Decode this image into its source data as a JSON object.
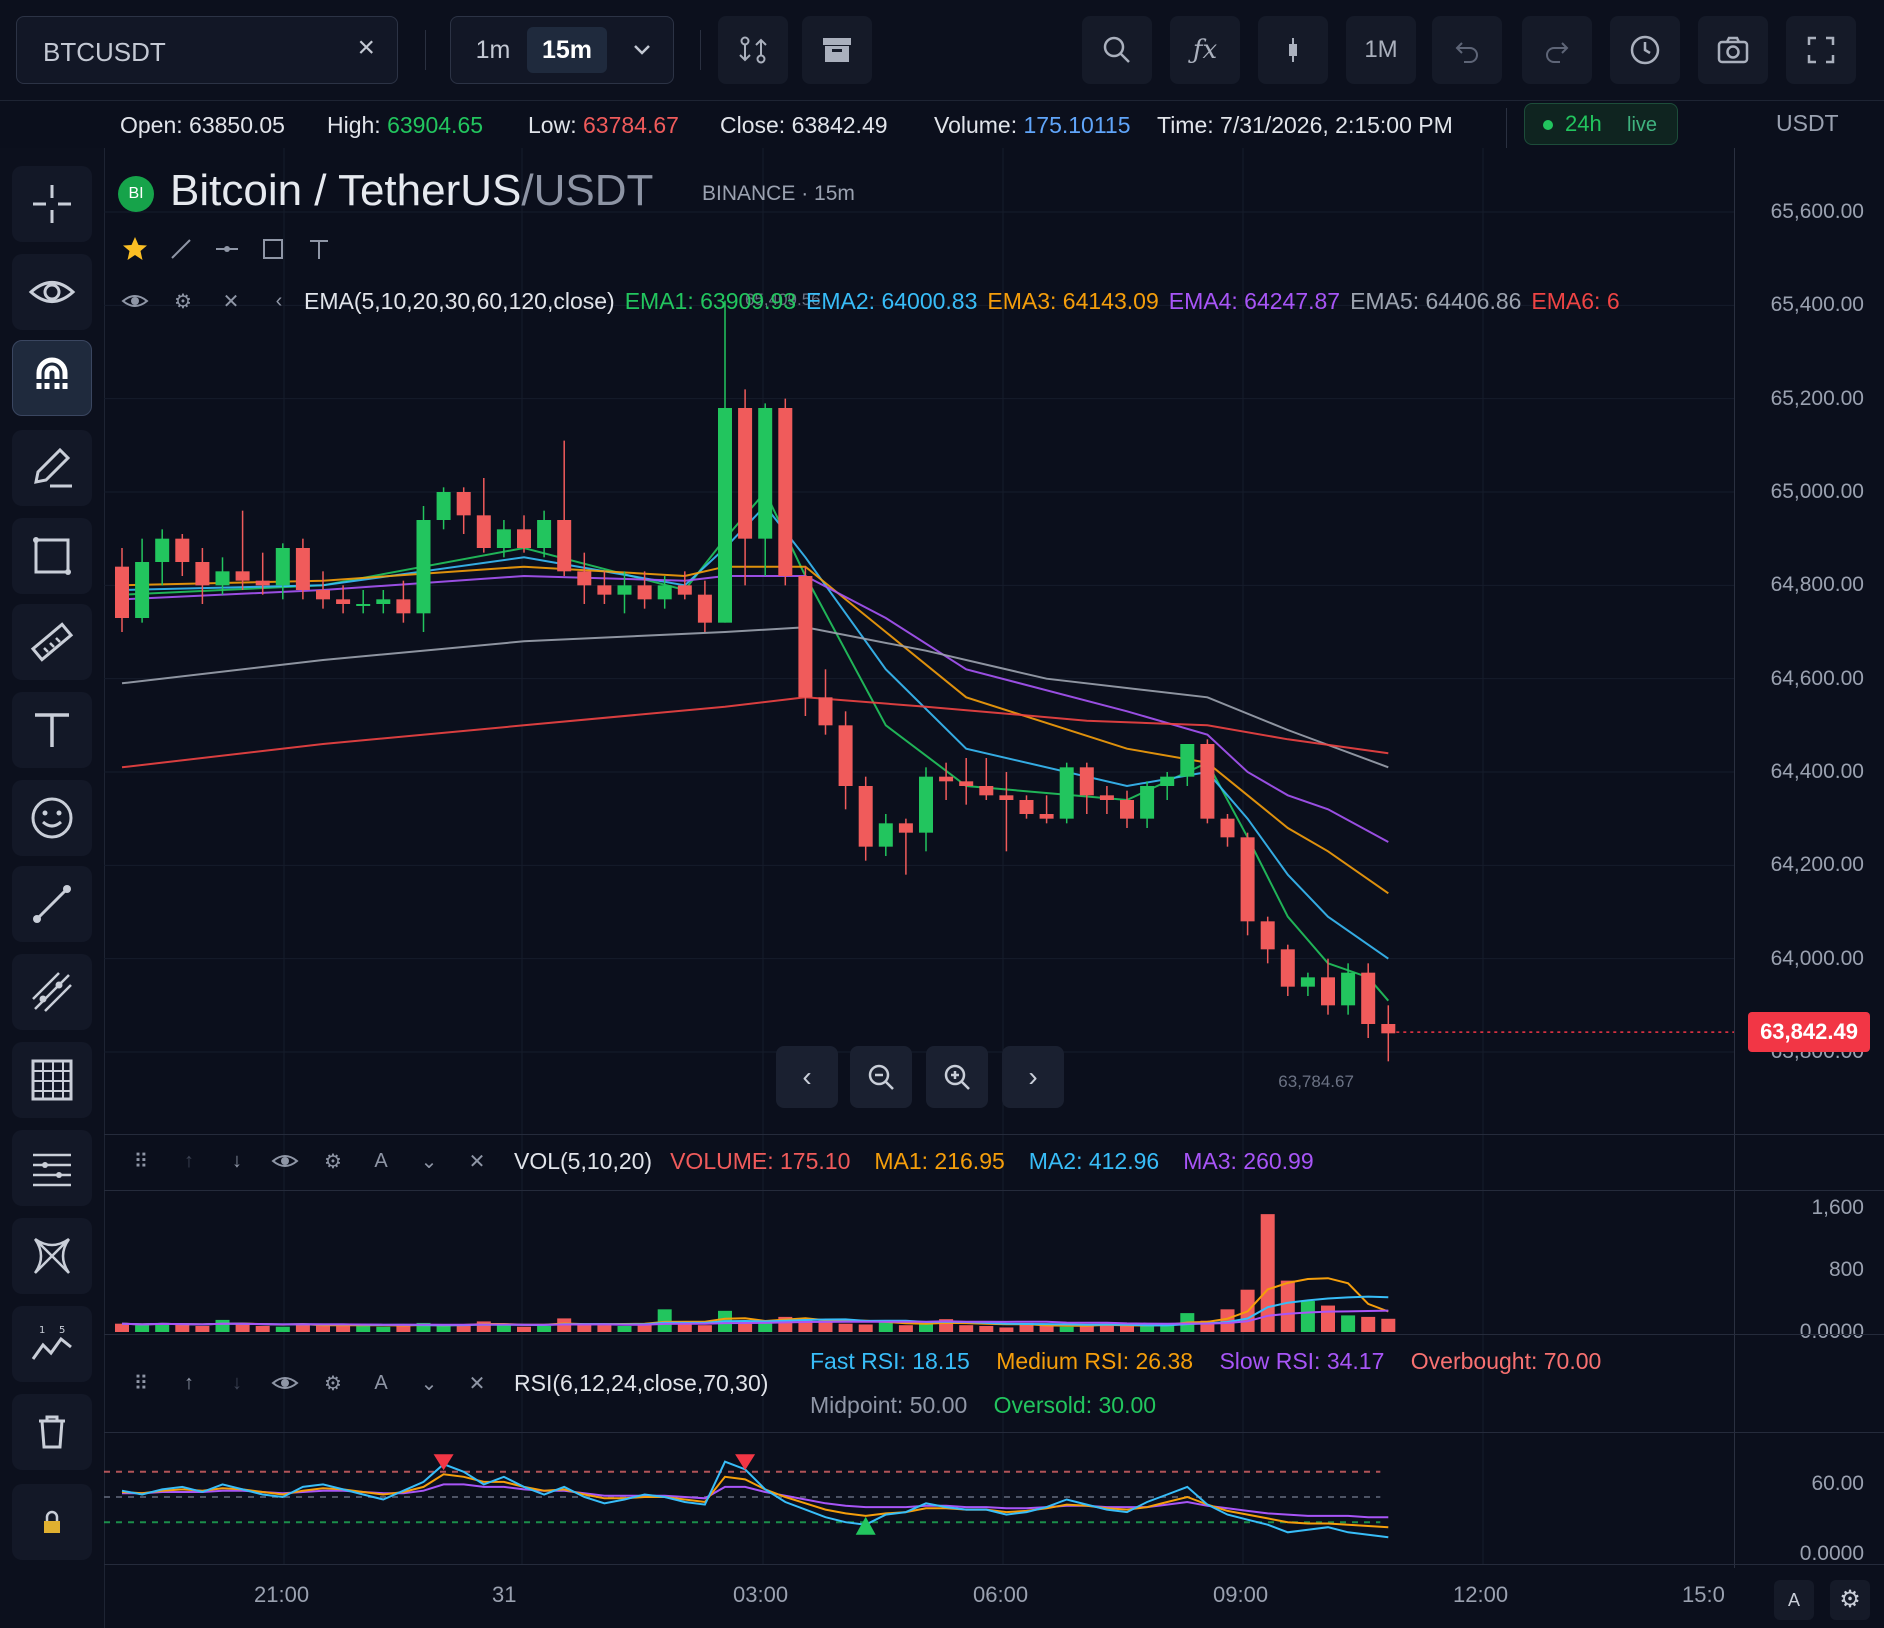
{
  "toolbar": {
    "symbol": "BTCUSDT",
    "intervals": [
      "1m",
      "15m"
    ],
    "active_interval": "15m",
    "range_label": "1M",
    "icons": [
      "compare-icon",
      "archive-icon",
      "search-icon",
      "function-icon",
      "candle-type-icon",
      "undo-icon",
      "redo-icon",
      "clock-icon",
      "camera-icon",
      "fullscreen-icon"
    ]
  },
  "info": {
    "open_label": "Open:",
    "open": "63850.05",
    "high_label": "High:",
    "high": "63904.65",
    "low_label": "Low:",
    "low": "63784.67",
    "close_label": "Close:",
    "close": "63842.49",
    "volume_label": "Volume:",
    "volume": "175.10115",
    "time_label": "Time:",
    "time": "7/31/2026, 2:15:00 PM",
    "live_period": "24h",
    "live_text": "live",
    "currency": "USDT"
  },
  "header": {
    "badge": "BI",
    "pair": "Bitcoin / TetherUS",
    "quote": "/USDT",
    "exchange": "BINANCE",
    "sep": "·",
    "interval": "15m"
  },
  "ema": {
    "label": "EMA(5,10,20,30,60,120,close)",
    "items": [
      {
        "text": "EMA1: 63909.93",
        "color": "#22c55e"
      },
      {
        "text": "EMA2: 64000.83",
        "color": "#38bdf8"
      },
      {
        "text": "EMA3: 64143.09",
        "color": "#f59e0b"
      },
      {
        "text": "EMA4: 64247.87",
        "color": "#a855f7"
      },
      {
        "text": "EMA5: 64406.86",
        "color": "#9ca3af"
      },
      {
        "text": "EMA6: 6",
        "color": "#ef4444"
      }
    ],
    "high_marker": "65,409.56",
    "low_marker": "63,784.67"
  },
  "vol": {
    "label": "VOL(5,10,20)",
    "volume": "VOLUME: 175.10",
    "ma1": "MA1: 216.95",
    "ma2": "MA2: 412.96",
    "ma3": "MA3: 260.99",
    "yticks": [
      "1,600",
      "800",
      "0.0000"
    ]
  },
  "rsi": {
    "label": "RSI(6,12,24,close,70,30)",
    "fast": "Fast RSI: 18.15",
    "medium": "Medium RSI: 26.38",
    "slow": "Slow RSI: 34.17",
    "overbought": "Overbought: 70.00",
    "midpoint": "Midpoint: 50.00",
    "oversold": "Oversold: 30.00",
    "yticks": [
      "60.00",
      "0.0000"
    ]
  },
  "price_axis": {
    "ticks": [
      "65,600.00",
      "65,400.00",
      "65,200.00",
      "65,000.00",
      "64,800.00",
      "64,600.00",
      "64,400.00",
      "64,200.00",
      "64,000.00",
      "63,800.00"
    ],
    "current": "63,842.49"
  },
  "time_axis": {
    "ticks": [
      "21:00",
      "31",
      "03:00",
      "06:00",
      "09:00",
      "12:00",
      "15:0"
    ]
  },
  "bottom_right": {
    "auto_label": "A"
  },
  "colors": {
    "up": "#22c55e",
    "down": "#f05b5b",
    "accent": "#f23645",
    "background": "#0b0f1c"
  },
  "chart_data": {
    "type": "candlestick",
    "interval": "15m",
    "candles": [
      {
        "o": 64840,
        "h": 64880,
        "l": 64700,
        "c": 64730
      },
      {
        "o": 64730,
        "h": 64900,
        "l": 64720,
        "c": 64850
      },
      {
        "o": 64850,
        "h": 64920,
        "l": 64800,
        "c": 64900
      },
      {
        "o": 64900,
        "h": 64910,
        "l": 64820,
        "c": 64850
      },
      {
        "o": 64850,
        "h": 64880,
        "l": 64760,
        "c": 64800
      },
      {
        "o": 64800,
        "h": 64860,
        "l": 64780,
        "c": 64830
      },
      {
        "o": 64830,
        "h": 64960,
        "l": 64790,
        "c": 64810
      },
      {
        "o": 64810,
        "h": 64870,
        "l": 64780,
        "c": 64800
      },
      {
        "o": 64800,
        "h": 64890,
        "l": 64770,
        "c": 64880
      },
      {
        "o": 64880,
        "h": 64900,
        "l": 64770,
        "c": 64790
      },
      {
        "o": 64790,
        "h": 64830,
        "l": 64750,
        "c": 64770
      },
      {
        "o": 64770,
        "h": 64800,
        "l": 64740,
        "c": 64760
      },
      {
        "o": 64760,
        "h": 64790,
        "l": 64740,
        "c": 64760
      },
      {
        "o": 64760,
        "h": 64790,
        "l": 64740,
        "c": 64770
      },
      {
        "o": 64770,
        "h": 64810,
        "l": 64720,
        "c": 64740
      },
      {
        "o": 64740,
        "h": 64970,
        "l": 64700,
        "c": 64940
      },
      {
        "o": 64940,
        "h": 65010,
        "l": 64920,
        "c": 65000
      },
      {
        "o": 65000,
        "h": 65010,
        "l": 64910,
        "c": 64950
      },
      {
        "o": 64950,
        "h": 65030,
        "l": 64870,
        "c": 64880
      },
      {
        "o": 64880,
        "h": 64940,
        "l": 64860,
        "c": 64920
      },
      {
        "o": 64920,
        "h": 64950,
        "l": 64870,
        "c": 64880
      },
      {
        "o": 64880,
        "h": 64960,
        "l": 64860,
        "c": 64940
      },
      {
        "o": 64940,
        "h": 65110,
        "l": 64820,
        "c": 64830
      },
      {
        "o": 64830,
        "h": 64870,
        "l": 64760,
        "c": 64800
      },
      {
        "o": 64800,
        "h": 64830,
        "l": 64760,
        "c": 64780
      },
      {
        "o": 64780,
        "h": 64830,
        "l": 64740,
        "c": 64800
      },
      {
        "o": 64800,
        "h": 64830,
        "l": 64750,
        "c": 64770
      },
      {
        "o": 64770,
        "h": 64820,
        "l": 64750,
        "c": 64800
      },
      {
        "o": 64800,
        "h": 64830,
        "l": 64770,
        "c": 64780
      },
      {
        "o": 64780,
        "h": 64810,
        "l": 64700,
        "c": 64720
      },
      {
        "o": 64720,
        "h": 65410,
        "l": 64720,
        "c": 65180
      },
      {
        "o": 65180,
        "h": 65220,
        "l": 64800,
        "c": 64900
      },
      {
        "o": 64900,
        "h": 65190,
        "l": 64820,
        "c": 65180
      },
      {
        "o": 65180,
        "h": 65200,
        "l": 64800,
        "c": 64820
      },
      {
        "o": 64820,
        "h": 64840,
        "l": 64520,
        "c": 64560
      },
      {
        "o": 64560,
        "h": 64620,
        "l": 64480,
        "c": 64500
      },
      {
        "o": 64500,
        "h": 64530,
        "l": 64320,
        "c": 64370
      },
      {
        "o": 64370,
        "h": 64390,
        "l": 64210,
        "c": 64240
      },
      {
        "o": 64240,
        "h": 64310,
        "l": 64220,
        "c": 64290
      },
      {
        "o": 64290,
        "h": 64300,
        "l": 64180,
        "c": 64270
      },
      {
        "o": 64270,
        "h": 64410,
        "l": 64230,
        "c": 64390
      },
      {
        "o": 64390,
        "h": 64420,
        "l": 64340,
        "c": 64380
      },
      {
        "o": 64380,
        "h": 64430,
        "l": 64330,
        "c": 64370
      },
      {
        "o": 64370,
        "h": 64430,
        "l": 64340,
        "c": 64350
      },
      {
        "o": 64350,
        "h": 64400,
        "l": 64230,
        "c": 64340
      },
      {
        "o": 64340,
        "h": 64350,
        "l": 64300,
        "c": 64310
      },
      {
        "o": 64310,
        "h": 64350,
        "l": 64290,
        "c": 64300
      },
      {
        "o": 64300,
        "h": 64420,
        "l": 64290,
        "c": 64410
      },
      {
        "o": 64410,
        "h": 64420,
        "l": 64310,
        "c": 64350
      },
      {
        "o": 64350,
        "h": 64370,
        "l": 64310,
        "c": 64340
      },
      {
        "o": 64340,
        "h": 64360,
        "l": 64280,
        "c": 64300
      },
      {
        "o": 64300,
        "h": 64380,
        "l": 64280,
        "c": 64370
      },
      {
        "o": 64370,
        "h": 64400,
        "l": 64340,
        "c": 64390
      },
      {
        "o": 64390,
        "h": 64460,
        "l": 64370,
        "c": 64460
      },
      {
        "o": 64460,
        "h": 64470,
        "l": 64290,
        "c": 64300
      },
      {
        "o": 64300,
        "h": 64310,
        "l": 64240,
        "c": 64260
      },
      {
        "o": 64260,
        "h": 64270,
        "l": 64050,
        "c": 64080
      },
      {
        "o": 64080,
        "h": 64090,
        "l": 63990,
        "c": 64020
      },
      {
        "o": 64020,
        "h": 64030,
        "l": 63920,
        "c": 63940
      },
      {
        "o": 63940,
        "h": 63970,
        "l": 63920,
        "c": 63960
      },
      {
        "o": 63960,
        "h": 64000,
        "l": 63880,
        "c": 63900
      },
      {
        "o": 63900,
        "h": 63990,
        "l": 63880,
        "c": 63970
      },
      {
        "o": 63970,
        "h": 63990,
        "l": 63830,
        "c": 63860
      },
      {
        "o": 63860,
        "h": 63900,
        "l": 63780,
        "c": 63840
      }
    ],
    "ema_series": [
      {
        "name": "EMA1",
        "color": "#22c55e",
        "values": [
          [
            0,
            64780
          ],
          [
            10,
            64800
          ],
          [
            20,
            64880
          ],
          [
            28,
            64790
          ],
          [
            30,
            64900
          ],
          [
            32,
            65000
          ],
          [
            34,
            64820
          ],
          [
            38,
            64500
          ],
          [
            42,
            64370
          ],
          [
            50,
            64340
          ],
          [
            54,
            64420
          ],
          [
            56,
            64260
          ],
          [
            58,
            64090
          ],
          [
            60,
            63990
          ],
          [
            62,
            63960
          ],
          [
            63,
            63910
          ]
        ]
      },
      {
        "name": "EMA2",
        "color": "#38bdf8",
        "values": [
          [
            0,
            64790
          ],
          [
            10,
            64800
          ],
          [
            20,
            64860
          ],
          [
            28,
            64800
          ],
          [
            30,
            64880
          ],
          [
            32,
            64970
          ],
          [
            34,
            64860
          ],
          [
            38,
            64620
          ],
          [
            42,
            64450
          ],
          [
            50,
            64370
          ],
          [
            54,
            64400
          ],
          [
            56,
            64300
          ],
          [
            58,
            64180
          ],
          [
            60,
            64090
          ],
          [
            63,
            64000
          ]
        ]
      },
      {
        "name": "EMA3",
        "color": "#f59e0b",
        "values": [
          [
            0,
            64800
          ],
          [
            10,
            64810
          ],
          [
            20,
            64840
          ],
          [
            28,
            64820
          ],
          [
            30,
            64840
          ],
          [
            34,
            64840
          ],
          [
            38,
            64700
          ],
          [
            42,
            64560
          ],
          [
            50,
            64450
          ],
          [
            54,
            64420
          ],
          [
            56,
            64350
          ],
          [
            58,
            64280
          ],
          [
            60,
            64230
          ],
          [
            63,
            64140
          ]
        ]
      },
      {
        "name": "EMA4",
        "color": "#a855f7",
        "values": [
          [
            0,
            64770
          ],
          [
            10,
            64790
          ],
          [
            20,
            64820
          ],
          [
            28,
            64810
          ],
          [
            30,
            64820
          ],
          [
            34,
            64820
          ],
          [
            38,
            64730
          ],
          [
            42,
            64620
          ],
          [
            50,
            64530
          ],
          [
            54,
            64480
          ],
          [
            56,
            64400
          ],
          [
            58,
            64350
          ],
          [
            60,
            64320
          ],
          [
            63,
            64250
          ]
        ]
      },
      {
        "name": "EMA5",
        "color": "#9ca3af",
        "values": [
          [
            0,
            64590
          ],
          [
            10,
            64640
          ],
          [
            20,
            64680
          ],
          [
            30,
            64700
          ],
          [
            34,
            64710
          ],
          [
            40,
            64660
          ],
          [
            46,
            64600
          ],
          [
            54,
            64560
          ],
          [
            58,
            64490
          ],
          [
            63,
            64410
          ]
        ]
      },
      {
        "name": "EMA6",
        "color": "#ef4444",
        "values": [
          [
            0,
            64410
          ],
          [
            10,
            64460
          ],
          [
            20,
            64500
          ],
          [
            30,
            64540
          ],
          [
            34,
            64560
          ],
          [
            40,
            64540
          ],
          [
            48,
            64510
          ],
          [
            54,
            64500
          ],
          [
            58,
            64470
          ],
          [
            63,
            64440
          ]
        ]
      }
    ],
    "volume": [
      110,
      90,
      120,
      100,
      80,
      160,
      100,
      80,
      70,
      110,
      90,
      100,
      80,
      70,
      90,
      120,
      80,
      100,
      140,
      90,
      70,
      80,
      180,
      100,
      90,
      80,
      100,
      300,
      110,
      90,
      280,
      130,
      120,
      200,
      180,
      150,
      110,
      100,
      130,
      90,
      110,
      170,
      90,
      80,
      60,
      120,
      90,
      70,
      80,
      110,
      90,
      80,
      100,
      250,
      150,
      300,
      560,
      1560,
      680,
      410,
      350,
      220,
      200,
      175
    ],
    "vol_ylim": [
      0,
      1800
    ],
    "price_ylim": [
      63700,
      65700
    ],
    "rsi": {
      "fast": [
        55,
        52,
        56,
        58,
        54,
        60,
        56,
        52,
        50,
        58,
        60,
        56,
        52,
        48,
        55,
        62,
        76,
        70,
        60,
        66,
        58,
        52,
        58,
        50,
        45,
        48,
        52,
        50,
        46,
        44,
        78,
        72,
        56,
        46,
        40,
        34,
        30,
        28,
        36,
        38,
        45,
        42,
        40,
        40,
        36,
        38,
        42,
        48,
        44,
        40,
        38,
        46,
        52,
        58,
        44,
        36,
        32,
        28,
        22,
        24,
        26,
        22,
        20,
        18
      ],
      "medium": [
        54,
        53,
        55,
        56,
        55,
        57,
        56,
        54,
        52,
        55,
        57,
        56,
        54,
        52,
        54,
        58,
        68,
        66,
        62,
        62,
        58,
        55,
        56,
        52,
        49,
        49,
        50,
        50,
        48,
        46,
        66,
        64,
        56,
        50,
        45,
        40,
        37,
        35,
        37,
        38,
        41,
        41,
        40,
        40,
        38,
        39,
        41,
        44,
        43,
        41,
        40,
        42,
        46,
        50,
        44,
        39,
        36,
        33,
        30,
        29,
        29,
        28,
        27,
        26
      ],
      "slow": [
        53,
        53,
        54,
        54,
        54,
        55,
        55,
        54,
        53,
        54,
        55,
        55,
        54,
        53,
        53,
        55,
        60,
        60,
        58,
        58,
        56,
        55,
        55,
        53,
        51,
        51,
        51,
        51,
        50,
        49,
        58,
        58,
        54,
        51,
        48,
        45,
        43,
        42,
        42,
        42,
        43,
        43,
        42,
        42,
        41,
        41,
        42,
        43,
        43,
        42,
        42,
        42,
        44,
        46,
        43,
        41,
        39,
        37,
        36,
        35,
        35,
        35,
        34,
        34
      ]
    }
  }
}
